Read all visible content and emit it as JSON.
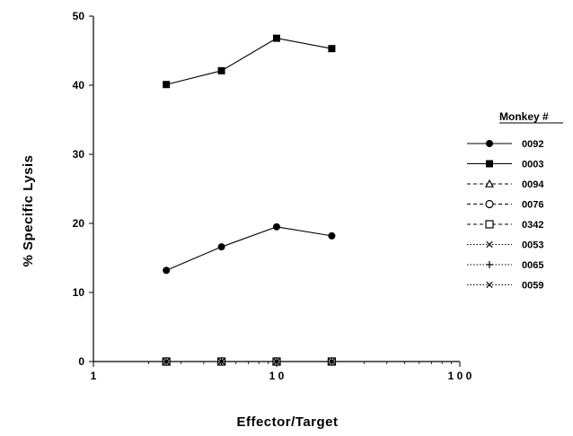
{
  "chart_data": {
    "type": "line",
    "x_scale": "log",
    "xlim": [
      1,
      100
    ],
    "ylim": [
      0,
      50
    ],
    "x_ticks": [
      1,
      10,
      100
    ],
    "x_tick_labels": [
      "1",
      "1 0",
      "1 0 0"
    ],
    "y_ticks": [
      0,
      10,
      20,
      30,
      40,
      50
    ],
    "xlabel": "Effector/Target",
    "ylabel": "% Specific Lysis",
    "legend_title": "Monkey  #",
    "legend_position": "right",
    "grid": false,
    "x": [
      2.5,
      5,
      10,
      20
    ],
    "series": [
      {
        "name": "0092",
        "values": [
          13.2,
          16.6,
          19.5,
          18.2
        ],
        "marker": "filled-circle",
        "line": "solid"
      },
      {
        "name": "0003",
        "values": [
          40.1,
          42.1,
          46.8,
          45.3
        ],
        "marker": "filled-square",
        "line": "solid"
      },
      {
        "name": "0094",
        "values": [
          0,
          0,
          0,
          0
        ],
        "marker": "open-triangle",
        "line": "dashed"
      },
      {
        "name": "0076",
        "values": [
          0,
          0,
          0,
          0
        ],
        "marker": "open-circle",
        "line": "dashed"
      },
      {
        "name": "0342",
        "values": [
          0,
          0,
          0,
          0
        ],
        "marker": "open-square",
        "line": "dashed"
      },
      {
        "name": "0053",
        "values": [
          0,
          0,
          0,
          0
        ],
        "marker": "x",
        "line": "dotted"
      },
      {
        "name": "0065",
        "values": [
          0,
          0,
          0,
          0
        ],
        "marker": "plus",
        "line": "dotted"
      },
      {
        "name": "0059",
        "values": [
          0,
          0,
          0,
          0
        ],
        "marker": "x",
        "line": "dotted"
      }
    ]
  }
}
